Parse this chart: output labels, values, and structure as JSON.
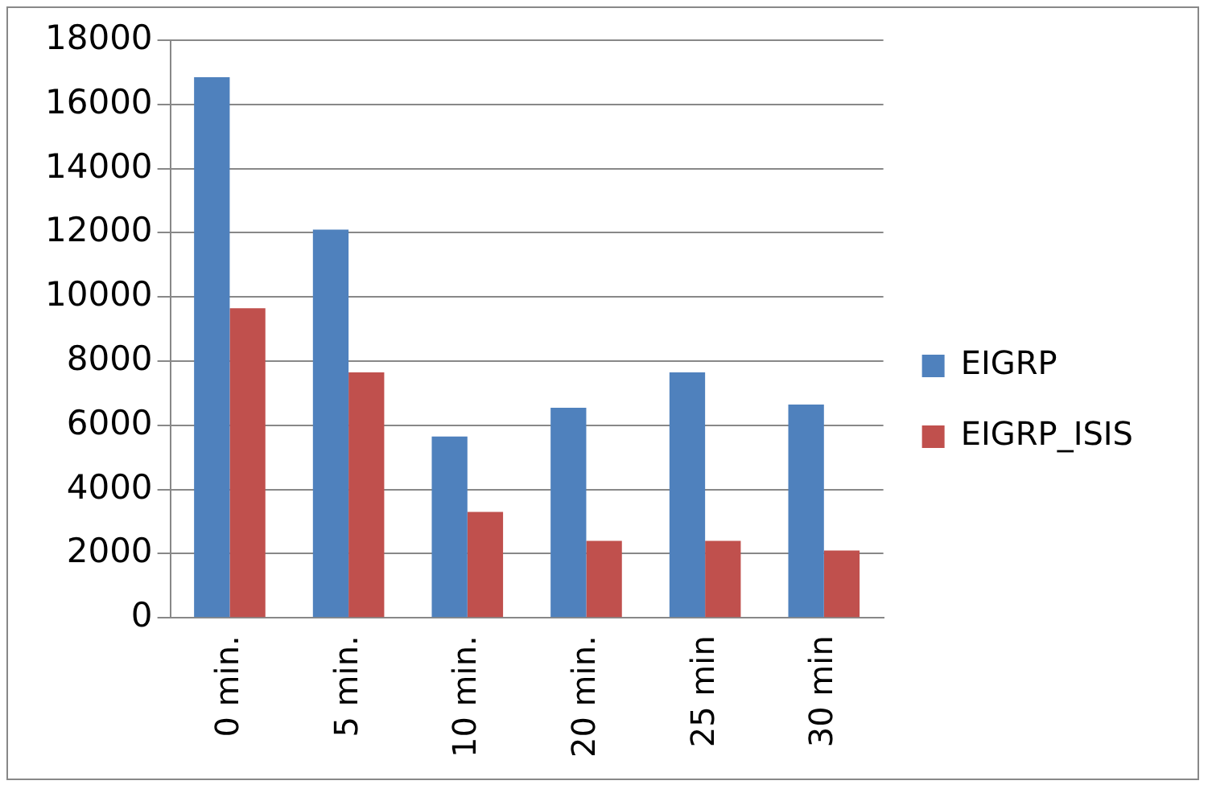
{
  "chart_data": {
    "type": "bar",
    "categories": [
      "0 min.",
      "5 min.",
      "10 min.",
      "20 min.",
      "25 min",
      "30 min"
    ],
    "series": [
      {
        "name": "EIGRP",
        "color": "#4f81bd",
        "values": [
          16850,
          12100,
          5650,
          6550,
          7650,
          6650
        ]
      },
      {
        "name": "EIGRP_ISIS",
        "color": "#c0504d",
        "values": [
          9650,
          7650,
          3300,
          2400,
          2400,
          2100
        ]
      }
    ],
    "ylim": [
      0,
      18000
    ],
    "yticks": [
      0,
      2000,
      4000,
      6000,
      8000,
      10000,
      12000,
      14000,
      16000,
      18000
    ],
    "grid": "y",
    "legend": "right"
  }
}
